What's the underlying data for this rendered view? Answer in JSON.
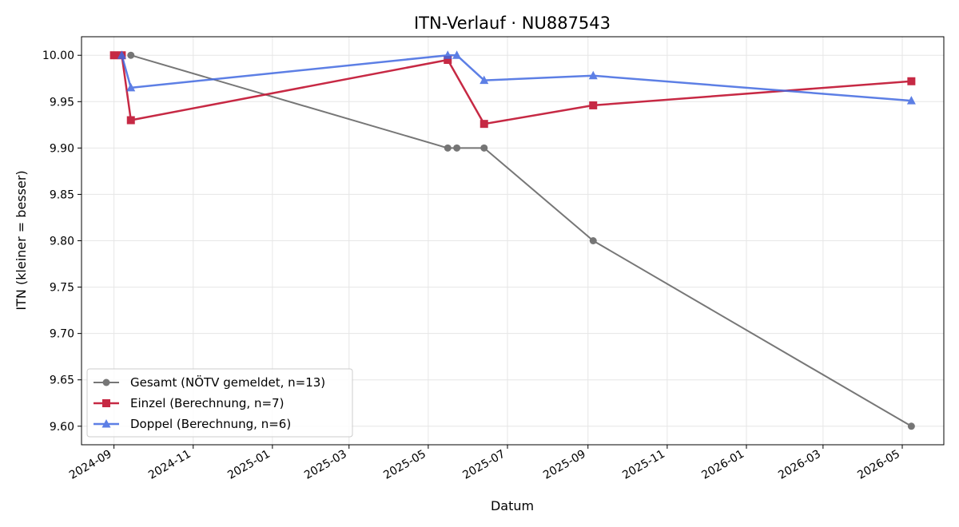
{
  "chart_data": {
    "type": "line",
    "title": "ITN-Verlauf · NU887543",
    "xlabel": "Datum",
    "ylabel": "ITN  (kleiner = besser)",
    "x_type": "date",
    "xlim": [
      "2024-08-07",
      "2026-06-02"
    ],
    "ylim": [
      9.58,
      10.02
    ],
    "x_ticks": [
      "2024-09",
      "2024-11",
      "2025-01",
      "2025-03",
      "2025-05",
      "2025-07",
      "2025-09",
      "2025-11",
      "2026-01",
      "2026-03",
      "2026-05"
    ],
    "y_ticks": [
      "9.60",
      "9.65",
      "9.70",
      "9.75",
      "9.80",
      "9.85",
      "9.90",
      "9.95",
      "10.00"
    ],
    "grid": true,
    "legend_position": "lower-left",
    "series": [
      {
        "name": "Gesamt (NÖTV gemeldet, n=13)",
        "color": "#555555",
        "marker": "circle",
        "points": [
          {
            "x": "2024-09-14",
            "y": 10.0
          },
          {
            "x": "2025-05-16",
            "y": 9.9
          },
          {
            "x": "2025-05-23",
            "y": 9.9
          },
          {
            "x": "2025-06-13",
            "y": 9.9
          },
          {
            "x": "2025-09-05",
            "y": 9.8
          },
          {
            "x": "2026-05-08",
            "y": 9.6
          }
        ]
      },
      {
        "name": "Einzel (Berechnung, n=7)",
        "color": "#c41e3a",
        "marker": "square",
        "points": [
          {
            "x": "2024-09-01",
            "y": 10.0
          },
          {
            "x": "2024-09-07",
            "y": 10.0
          },
          {
            "x": "2024-09-14",
            "y": 9.93
          },
          {
            "x": "2025-05-16",
            "y": 9.995
          },
          {
            "x": "2025-06-13",
            "y": 9.926
          },
          {
            "x": "2025-09-05",
            "y": 9.946
          },
          {
            "x": "2026-05-08",
            "y": 9.972
          }
        ]
      },
      {
        "name": "Doppel (Berechnung, n=6)",
        "color": "#4169e1",
        "marker": "triangle",
        "points": [
          {
            "x": "2024-09-07",
            "y": 10.0
          },
          {
            "x": "2024-09-14",
            "y": 9.965
          },
          {
            "x": "2025-05-16",
            "y": 10.0
          },
          {
            "x": "2025-05-23",
            "y": 10.0
          },
          {
            "x": "2025-06-13",
            "y": 9.973
          },
          {
            "x": "2025-09-05",
            "y": 9.978
          },
          {
            "x": "2026-05-08",
            "y": 9.951
          }
        ]
      }
    ]
  }
}
